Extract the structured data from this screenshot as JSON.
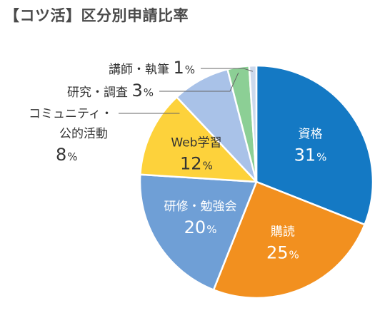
{
  "title": "【コツ活】区分別申請比率",
  "chart_data": {
    "type": "pie",
    "title": "【コツ活】区分別申請比率",
    "unit": "%",
    "slices": [
      {
        "label": "資格",
        "value": 31,
        "color": "#1479c4",
        "text_color": "#ffffff",
        "label_pos": "inside"
      },
      {
        "label": "購読",
        "value": 25,
        "color": "#f2901f",
        "text_color": "#ffffff",
        "label_pos": "inside"
      },
      {
        "label": "研修・勉強会",
        "value": 20,
        "color": "#6f9fd6",
        "text_color": "#ffffff",
        "label_pos": "inside"
      },
      {
        "label": "Web学習",
        "value": 12,
        "color": "#fdd23b",
        "text_color": "#333333",
        "label_pos": "inside"
      },
      {
        "label": "コミュニティ・公的活動",
        "lines": [
          "コミュニティ・",
          "公的活動"
        ],
        "value": 8,
        "color": "#a9c2e8",
        "text_color": "#333333",
        "label_pos": "outside"
      },
      {
        "label": "研究・調査",
        "value": 3,
        "color": "#8ccf95",
        "text_color": "#333333",
        "label_pos": "outside"
      },
      {
        "label": "講師・執筆",
        "value": 1,
        "color": "#cdd9ec",
        "text_color": "#333333",
        "label_pos": "outside"
      }
    ]
  }
}
